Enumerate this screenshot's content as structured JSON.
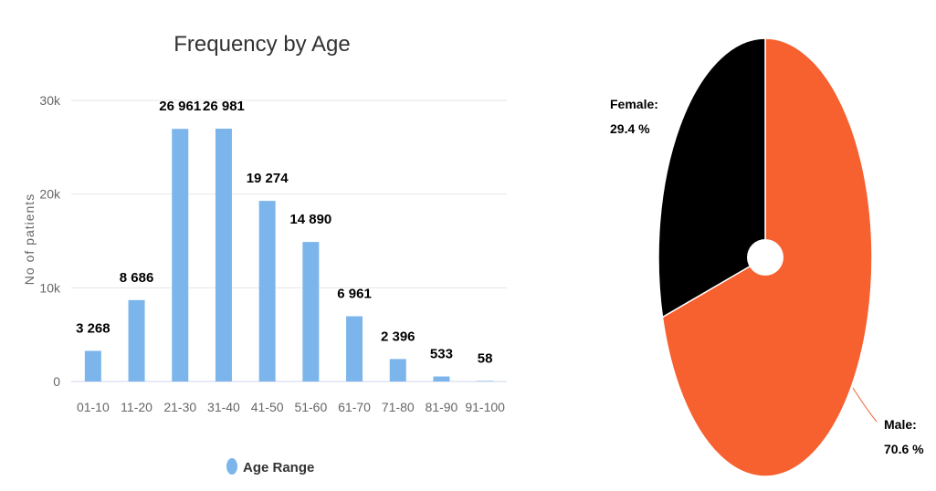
{
  "charts": {
    "bar": {
      "chart_data": {
        "type": "bar",
        "title": "Frequency by Age",
        "xlabel": "",
        "ylabel": "No of patients",
        "categories": [
          "01-10",
          "11-20",
          "21-30",
          "31-40",
          "41-50",
          "51-60",
          "61-70",
          "71-80",
          "81-90",
          "91-100"
        ],
        "series": [
          {
            "name": "Age Range",
            "values": [
              3268,
              8686,
              26961,
              26981,
              19274,
              14890,
              6961,
              2396,
              533,
              58
            ],
            "labels": [
              "3 268",
              "8 686",
              "26 961",
              "26 981",
              "19 274",
              "14 890",
              "6 961",
              "2 396",
              "533",
              "58"
            ],
            "color": "#7cb5ec"
          }
        ],
        "ylim": [
          0,
          30000
        ],
        "yticks": [
          0,
          10000,
          20000,
          30000
        ],
        "ytick_labels": [
          "0",
          "10k",
          "20k",
          "30k"
        ],
        "grid": true,
        "legend": "bottom"
      }
    },
    "pie": {
      "chart_data": {
        "type": "pie",
        "donut": true,
        "slices": [
          {
            "name": "Male",
            "value": 70.6,
            "label": "Male:",
            "value_label": "70.6 %",
            "color": "#f7602f"
          },
          {
            "name": "Female",
            "value": 29.4,
            "label": "Female:",
            "value_label": "29.4 %",
            "color": "#000000"
          }
        ],
        "legend": "none"
      }
    }
  }
}
